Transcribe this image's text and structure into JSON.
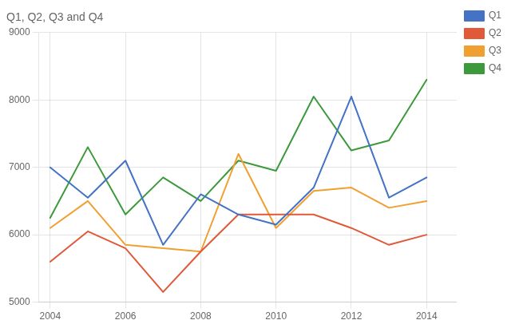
{
  "chart_data": {
    "type": "line",
    "title": "Q1, Q2, Q3 and Q4",
    "x": [
      2004,
      2005,
      2006,
      2007,
      2008,
      2009,
      2010,
      2011,
      2012,
      2013,
      2014
    ],
    "series": [
      {
        "name": "Q1",
        "color": "#4472c4",
        "values": [
          7000,
          6550,
          7100,
          5850,
          6600,
          6300,
          6150,
          6700,
          8050,
          6550,
          6850
        ]
      },
      {
        "name": "Q2",
        "color": "#e05a3a",
        "values": [
          5600,
          6050,
          5800,
          5150,
          5750,
          6300,
          6300,
          6300,
          6100,
          5850,
          6000
        ]
      },
      {
        "name": "Q3",
        "color": "#f0a030",
        "values": [
          6100,
          6500,
          5850,
          5800,
          5750,
          7200,
          6100,
          6650,
          6700,
          6400,
          6500
        ]
      },
      {
        "name": "Q4",
        "color": "#3c9a3c",
        "values": [
          6250,
          7300,
          6300,
          6850,
          6500,
          7100,
          6950,
          8050,
          7250,
          7400,
          8300
        ]
      }
    ],
    "xlim": [
      2003.7,
      2014.8
    ],
    "xticks": [
      2004,
      2006,
      2008,
      2010,
      2012,
      2014
    ],
    "ylim": [
      5000,
      9000
    ],
    "yticks": [
      5000,
      6000,
      7000,
      8000,
      9000
    ],
    "grid": true,
    "legend": "right"
  }
}
